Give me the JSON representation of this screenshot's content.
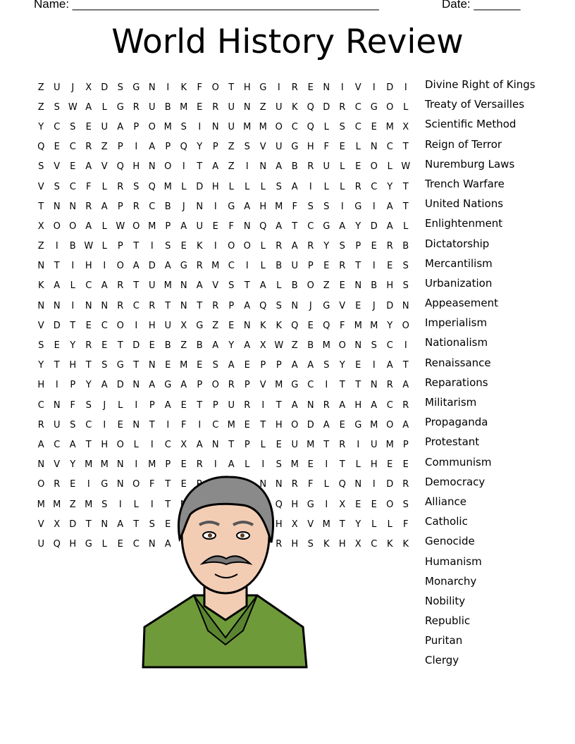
{
  "header": {
    "name_label": "Name: ______________________________________________",
    "date_label": "Date: _______"
  },
  "title": "World History Review",
  "grid": [
    "ZUJXDSGNIKFOTHGIRENIVIDI",
    "ZSWALGRUBMERUNZUKQDRCGOL",
    "YCSEUAPOMSINUMMOCQLSCEMX",
    "QECRZPIAPQYPZSVUGHFELNCT",
    "SVEAVQHNOITAZINABRULEOLW",
    "VSCFLRSQMLDHLLLSAILLRCYT",
    "TNNRAPRCBJNIGAHMFSSIGIAT",
    "XOOALWOMPAUEFNQATCGAYDAL",
    "ZIBWLPTISEKIOOLRARYSPERB",
    "NTIHIOADAGRMCILBUPERTIES",
    "KALCARTUMNAVSTALBOZENBHS",
    "NNINNRCRTNTRPAQSNJGVEJDN",
    "VDTECOIHUXGZENKKQEQFMMYO",
    "SEYRETDEBZBAYAXWZBMONSCI",
    "YTHTSGTNEMESAEPPAASYEIAT",
    "HIPYADNAGAPORPVMGCITTNRA",
    "CNFSJLIPAETPURITANRAHACR",
    "RUSCIENTIFICMETHODAEGMOA",
    "ACATHOLICXANTPLEUMTRIUMP",
    "NVYMMNIMPERIALISMEITLHEE",
    "OREIGNOFTERRORNNRFLQNIDR",
    "MMZMSILITNACREMQHGIXEEOS",
    "VXDTNATSETORPRQHXVMTYLLF",
    "UQHGLECNASSIANERHSKHXCKK"
  ],
  "words": [
    "Divine Right of Kings",
    "Treaty of Versailles",
    "Scientific Method",
    "Reign of Terror",
    "Nuremburg Laws",
    "Trench Warfare",
    "United Nations",
    "Enlightenment",
    "Dictatorship",
    "Mercantilism",
    "Urbanization",
    "Appeasement",
    "Imperialism",
    "Nationalism",
    "Renaissance",
    "Reparations",
    "Militarism",
    "Propaganda",
    "Protestant",
    "Communism",
    "Democracy",
    "Alliance",
    "Catholic",
    "Genocide",
    "Humanism",
    "Monarchy",
    "Nobility",
    "Republic",
    "Puritan",
    "Clergy"
  ],
  "colors": {
    "jacket": "#6f9a3a",
    "hair": "#8a8a8a",
    "skin": "#f2cdb4"
  }
}
